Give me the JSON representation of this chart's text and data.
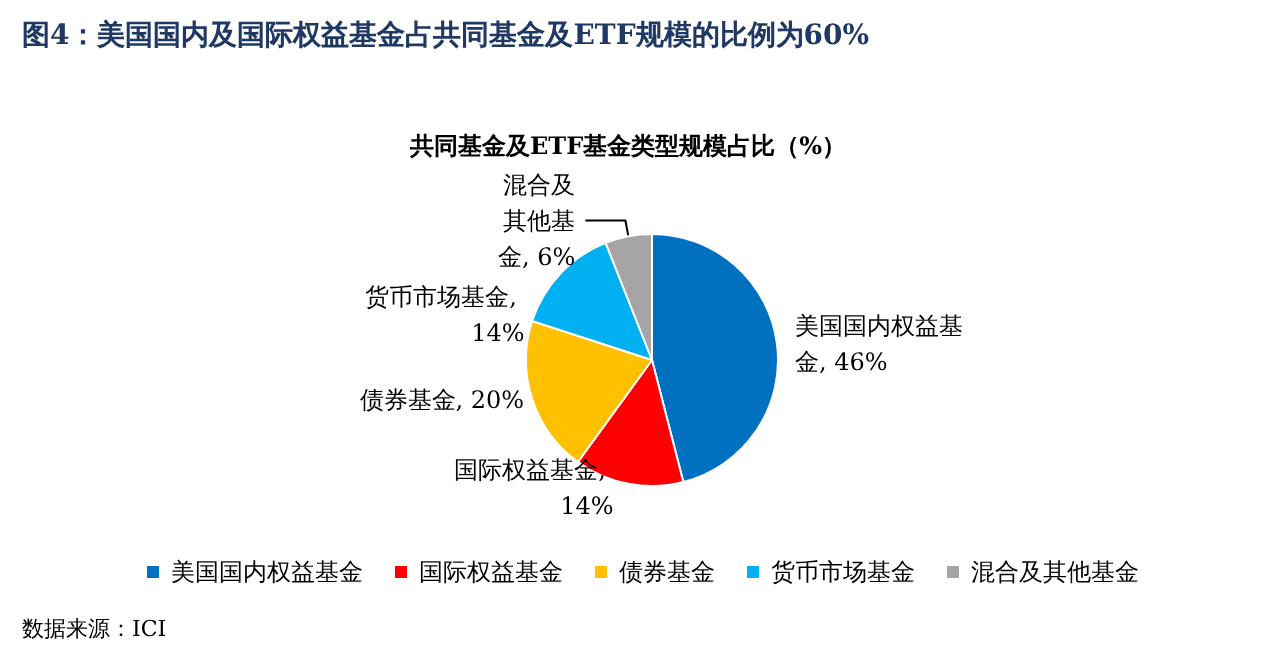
{
  "chart_data": {
    "type": "pie",
    "title": "图4：美国国内及国际权益基金占共同基金及ETF规模的比例为60%",
    "subtitle": "共同基金及ETF基金类型规模占比（%）",
    "categories": [
      "美国国内权益基金",
      "国际权益基金",
      "债券基金",
      "货币市场基金",
      "混合及其他基金"
    ],
    "values": [
      46,
      14,
      20,
      14,
      6
    ],
    "colors": [
      "#0070c0",
      "#ff0000",
      "#ffc000",
      "#00b0f0",
      "#a5a5a5"
    ],
    "value_labels": [
      "美国国内权益基金, 46%",
      "国际权益基金, 14%",
      "债券基金, 20%",
      "货币市场基金, 14%",
      "混合及其他基金, 6%"
    ],
    "legend": "bottom",
    "annotations": [
      "数据来源：ICI"
    ]
  }
}
